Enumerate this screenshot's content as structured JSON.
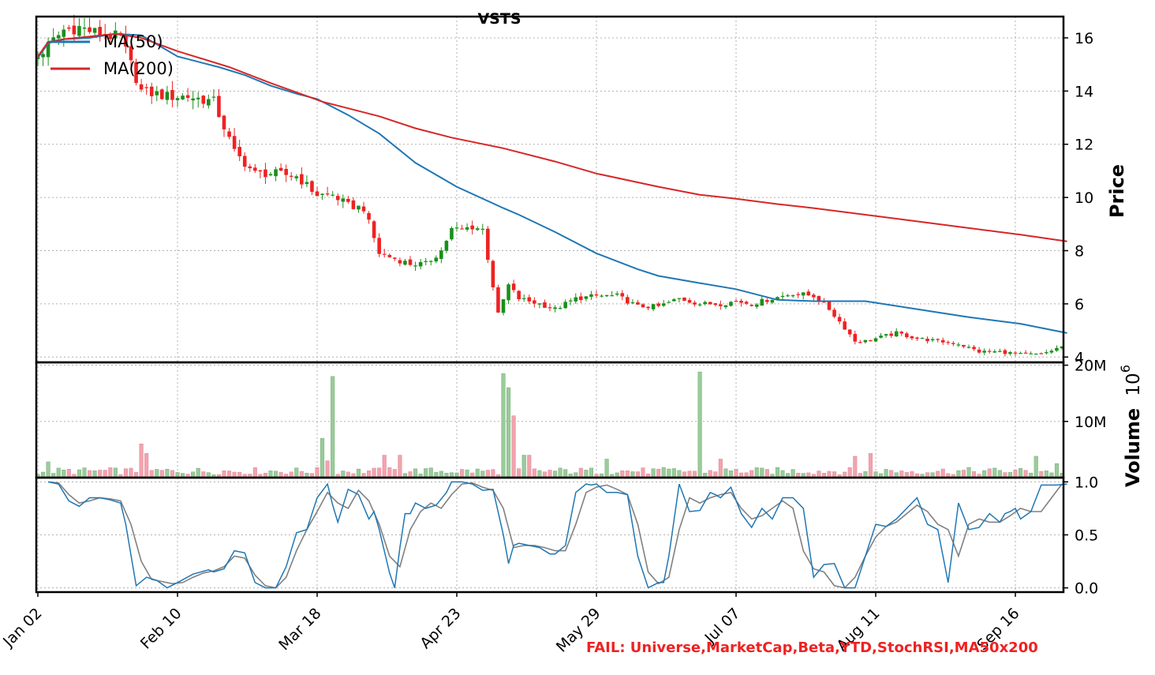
{
  "chart_data": {
    "type": "candlestick",
    "title": "VSTS",
    "x_tick_labels": [
      "Jan 02",
      "Feb 10",
      "Mar 18",
      "Apr 23",
      "May 29",
      "Jul 07",
      "Aug 11",
      "Sep 16"
    ],
    "x_tick_days": [
      0,
      27,
      54,
      81,
      108,
      135,
      162,
      189
    ],
    "day_count": 199,
    "price_panel": {
      "ylabel": "Price",
      "ylim": [
        3.8,
        16.8
      ],
      "yticks": [
        "4",
        "6",
        "8",
        "10",
        "12",
        "14",
        "16"
      ],
      "grid": true,
      "legend": {
        "position": "top-left",
        "entries": [
          "MA(50)",
          "MA(200)"
        ]
      },
      "ohlc_keypoints": {
        "days": [
          0,
          3,
          5,
          8,
          11,
          16,
          20,
          25,
          29,
          34,
          38,
          42,
          46,
          50,
          54,
          57,
          60,
          63,
          66,
          69,
          72,
          75,
          78,
          80,
          82,
          84,
          86,
          89,
          91,
          93,
          95,
          97,
          100,
          104,
          108,
          112,
          116,
          120,
          124,
          128,
          132,
          135,
          138,
          142,
          146,
          150,
          153,
          156,
          158,
          160,
          162,
          166,
          170,
          174,
          178,
          182,
          186,
          190,
          194,
          198
        ],
        "close": [
          15.3,
          15.9,
          16.3,
          16.4,
          16.2,
          16.0,
          14.0,
          13.8,
          13.8,
          13.6,
          11.7,
          10.9,
          10.9,
          10.8,
          10.1,
          10.1,
          9.7,
          9.6,
          7.9,
          7.7,
          7.5,
          7.5,
          8.0,
          8.8,
          8.8,
          8.9,
          8.8,
          5.6,
          6.7,
          6.2,
          6.1,
          6.0,
          5.8,
          6.2,
          6.3,
          6.3,
          5.9,
          5.9,
          6.2,
          6.0,
          6.0,
          6.1,
          6.0,
          6.2,
          6.4,
          6.3,
          5.8,
          5.1,
          4.6,
          4.6,
          4.7,
          4.9,
          4.7,
          4.6,
          4.5,
          4.2,
          4.2,
          4.1,
          4.1,
          4.4
        ]
      },
      "ma50": {
        "name": "MA(50)",
        "color": "#1f77b4",
        "days": [
          0,
          2,
          5,
          10,
          15,
          20,
          27,
          35,
          40,
          45,
          50,
          54,
          60,
          66,
          73,
          81,
          90,
          93,
          100,
          108,
          116,
          120,
          128,
          135,
          143,
          150,
          160,
          170,
          180,
          190,
          199
        ],
        "values": [
          15.25,
          15.8,
          15.95,
          16.0,
          16.15,
          16.1,
          15.3,
          14.9,
          14.6,
          14.2,
          13.9,
          13.7,
          13.1,
          12.4,
          11.3,
          10.4,
          9.6,
          9.35,
          8.7,
          7.9,
          7.3,
          7.05,
          6.78,
          6.55,
          6.15,
          6.1,
          6.1,
          5.8,
          5.5,
          5.25,
          4.9
        ]
      },
      "ma200": {
        "name": "MA(200)",
        "color": "#d62728",
        "days": [
          0,
          2,
          5,
          10,
          15,
          20,
          27,
          37,
          45,
          55,
          66,
          73,
          80,
          90,
          100,
          108,
          120,
          128,
          135,
          143,
          150,
          160,
          170,
          180,
          190,
          199
        ],
        "values": [
          15.3,
          15.85,
          15.95,
          16.05,
          16.15,
          16.0,
          15.5,
          14.9,
          14.3,
          13.6,
          13.05,
          12.6,
          12.25,
          11.85,
          11.35,
          10.9,
          10.4,
          10.1,
          9.95,
          9.75,
          9.6,
          9.35,
          9.1,
          8.85,
          8.6,
          8.35
        ]
      }
    },
    "volume_panel": {
      "ylabel": "Volume",
      "multiplier_label": "10",
      "multiplier_exponent": "6",
      "ylim": [
        0,
        20.5
      ],
      "yticks": [
        "10M",
        "20M"
      ],
      "grid": true,
      "unit": "millions of shares",
      "baseline": 1.3,
      "spikes": [
        {
          "day": 20,
          "value": 6.0
        },
        {
          "day": 21,
          "value": 4.3
        },
        {
          "day": 2,
          "value": 2.8
        },
        {
          "day": 55,
          "value": 7.0
        },
        {
          "day": 57,
          "value": 18.0
        },
        {
          "day": 56,
          "value": 3.0
        },
        {
          "day": 67,
          "value": 4.0
        },
        {
          "day": 70,
          "value": 4.0
        },
        {
          "day": 90,
          "value": 18.5
        },
        {
          "day": 91,
          "value": 16.0
        },
        {
          "day": 92,
          "value": 11.0
        },
        {
          "day": 94,
          "value": 4.0
        },
        {
          "day": 95,
          "value": 4.0
        },
        {
          "day": 110,
          "value": 3.3
        },
        {
          "day": 128,
          "value": 18.8
        },
        {
          "day": 132,
          "value": 3.3
        },
        {
          "day": 158,
          "value": 3.8
        },
        {
          "day": 161,
          "value": 4.3
        },
        {
          "day": 193,
          "value": 3.8
        },
        {
          "day": 197,
          "value": 2.5
        }
      ]
    },
    "stoch_panel": {
      "ylabel": "",
      "ylim": [
        -0.04,
        1.04
      ],
      "yticks": [
        "0.0",
        "0.5",
        "1.0"
      ],
      "grid": true,
      "k_line": {
        "color": "#1f77b4",
        "days": [
          2,
          4,
          6,
          8,
          10,
          12,
          14,
          16,
          17,
          19,
          21,
          23,
          25,
          27,
          30,
          33,
          34,
          36,
          38,
          40,
          42,
          44,
          46,
          48,
          50,
          52,
          54,
          56,
          57,
          58,
          60,
          62,
          64,
          65,
          66,
          68,
          69,
          70,
          71,
          72,
          73,
          75,
          77,
          79,
          80,
          82,
          84,
          86,
          88,
          90,
          91,
          92,
          93,
          95,
          97,
          99,
          100,
          102,
          104,
          106,
          107,
          108,
          110,
          112,
          114,
          116,
          118,
          120,
          121,
          122,
          124,
          126,
          128,
          130,
          131,
          132,
          134,
          136,
          138,
          140,
          142,
          144,
          146,
          148,
          150,
          152,
          154,
          156,
          157,
          158,
          160,
          162,
          164,
          166,
          168,
          170,
          172,
          174,
          176,
          178,
          180,
          182,
          184,
          186,
          187,
          188,
          189,
          190,
          192,
          194,
          196,
          197,
          199
        ],
        "values": [
          1.0,
          0.98,
          0.82,
          0.77,
          0.85,
          0.85,
          0.83,
          0.8,
          0.6,
          0.02,
          0.1,
          0.07,
          0.0,
          0.05,
          0.13,
          0.17,
          0.15,
          0.18,
          0.35,
          0.33,
          0.05,
          0.0,
          0.0,
          0.2,
          0.52,
          0.55,
          0.85,
          0.98,
          0.78,
          0.62,
          0.93,
          0.88,
          0.65,
          0.72,
          0.55,
          0.14,
          0.0,
          0.38,
          0.7,
          0.7,
          0.8,
          0.75,
          0.78,
          0.9,
          1.0,
          1.0,
          0.98,
          0.92,
          0.93,
          0.5,
          0.23,
          0.4,
          0.42,
          0.4,
          0.38,
          0.32,
          0.32,
          0.4,
          0.9,
          0.98,
          0.97,
          0.98,
          0.9,
          0.9,
          0.88,
          0.3,
          0.0,
          0.05,
          0.05,
          0.3,
          0.98,
          0.72,
          0.73,
          0.9,
          0.88,
          0.85,
          0.95,
          0.7,
          0.57,
          0.75,
          0.65,
          0.85,
          0.85,
          0.75,
          0.1,
          0.22,
          0.23,
          0.0,
          0.0,
          0.0,
          0.3,
          0.6,
          0.58,
          0.65,
          0.75,
          0.85,
          0.6,
          0.55,
          0.05,
          0.8,
          0.55,
          0.57,
          0.7,
          0.62,
          0.7,
          0.72,
          0.75,
          0.65,
          0.72,
          0.97,
          0.97,
          0.97,
          0.98
        ],
        "smooth": false
      },
      "d_line": {
        "color": "#808080",
        "days": [
          2,
          4,
          6,
          8,
          10,
          12,
          14,
          16,
          18,
          20,
          22,
          24,
          26,
          28,
          30,
          32,
          34,
          36,
          38,
          40,
          42,
          44,
          46,
          48,
          50,
          52,
          54,
          56,
          58,
          60,
          62,
          64,
          66,
          68,
          70,
          72,
          74,
          76,
          78,
          80,
          82,
          84,
          86,
          88,
          90,
          92,
          94,
          96,
          98,
          100,
          102,
          104,
          106,
          108,
          110,
          112,
          114,
          116,
          118,
          120,
          122,
          124,
          126,
          128,
          130,
          132,
          134,
          136,
          138,
          140,
          142,
          144,
          146,
          148,
          150,
          152,
          154,
          156,
          158,
          160,
          162,
          164,
          166,
          168,
          170,
          172,
          174,
          176,
          178,
          180,
          182,
          184,
          186,
          188,
          190,
          192,
          194,
          196,
          198
        ],
        "values": [
          1.0,
          0.99,
          0.88,
          0.8,
          0.82,
          0.85,
          0.84,
          0.82,
          0.6,
          0.25,
          0.08,
          0.06,
          0.04,
          0.05,
          0.1,
          0.14,
          0.16,
          0.2,
          0.3,
          0.28,
          0.12,
          0.02,
          0.0,
          0.1,
          0.35,
          0.55,
          0.72,
          0.9,
          0.8,
          0.75,
          0.92,
          0.82,
          0.6,
          0.3,
          0.2,
          0.55,
          0.72,
          0.8,
          0.75,
          0.88,
          0.98,
          0.99,
          0.95,
          0.92,
          0.75,
          0.38,
          0.4,
          0.4,
          0.38,
          0.35,
          0.35,
          0.6,
          0.9,
          0.95,
          0.97,
          0.93,
          0.88,
          0.6,
          0.15,
          0.04,
          0.1,
          0.55,
          0.85,
          0.8,
          0.85,
          0.88,
          0.9,
          0.75,
          0.65,
          0.68,
          0.75,
          0.82,
          0.75,
          0.35,
          0.18,
          0.15,
          0.02,
          0.0,
          0.1,
          0.3,
          0.48,
          0.58,
          0.62,
          0.7,
          0.78,
          0.72,
          0.6,
          0.55,
          0.3,
          0.6,
          0.65,
          0.62,
          0.62,
          0.68,
          0.75,
          0.72,
          0.72,
          0.85,
          0.98
        ]
      }
    },
    "colors": {
      "up_candle": "#1a8f1a",
      "down_candle": "#ee2222",
      "up_volume": "#99cc99",
      "down_volume": "#f2a3ae"
    }
  },
  "annotation": {
    "fail_text": "FAIL: Universe,MarketCap,Beta,YTD,StochRSI,MA50x200"
  }
}
